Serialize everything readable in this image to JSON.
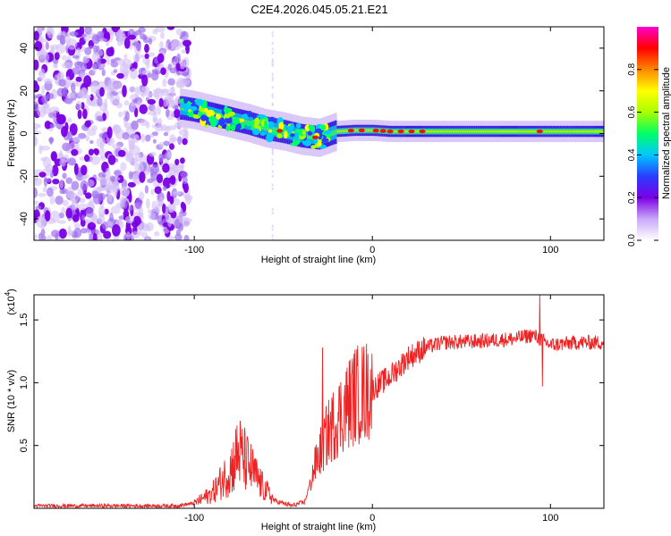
{
  "title": "C2E4.2026.045.05.21.E21",
  "chart_data": [
    {
      "type": "heatmap",
      "name": "spectrogram",
      "xlabel": "Height of straight line (km)",
      "ylabel": "Frequency (Hz)",
      "xlim": [
        -190,
        130
      ],
      "ylim": [
        -50,
        50
      ],
      "xticks": [
        -100,
        0,
        100
      ],
      "yticks": [
        -40,
        -20,
        0,
        20,
        40
      ],
      "noise_region": [
        -190,
        -105
      ],
      "ridge": [
        {
          "x": -107,
          "f": 12
        },
        {
          "x": -100,
          "f": 11
        },
        {
          "x": -90,
          "f": 9
        },
        {
          "x": -80,
          "f": 7
        },
        {
          "x": -70,
          "f": 5
        },
        {
          "x": -60,
          "f": 2.5
        },
        {
          "x": -50,
          "f": 1
        },
        {
          "x": -40,
          "f": -1
        },
        {
          "x": -30,
          "f": -2
        },
        {
          "x": -20,
          "f": 1
        },
        {
          "x": -10,
          "f": 1.5
        },
        {
          "x": 0,
          "f": 1.5
        },
        {
          "x": 10,
          "f": 1
        },
        {
          "x": 20,
          "f": 1
        },
        {
          "x": 40,
          "f": 1
        },
        {
          "x": 60,
          "f": 1
        },
        {
          "x": 80,
          "f": 1
        },
        {
          "x": 100,
          "f": 1
        },
        {
          "x": 130,
          "f": 1
        }
      ],
      "colorbar": {
        "label": "Normalized spectral amplitude",
        "range": [
          0,
          1
        ],
        "ticks": [
          0.0,
          0.2,
          0.4,
          0.6,
          0.8
        ],
        "tick_labels": [
          "0.0",
          "0.2",
          "0.4",
          "0.6",
          "0.8"
        ],
        "colors": [
          "#ffffff",
          "#c9a8f7",
          "#7a00e6",
          "#2a3cff",
          "#00c8ff",
          "#00ff66",
          "#aaff00",
          "#ffff00",
          "#ff8800",
          "#ff0000",
          "#ff00cc"
        ]
      }
    },
    {
      "type": "line",
      "name": "snr",
      "xlabel": "Height of straight line (km)",
      "ylabel": "SNR (10 * v/v)",
      "scale_label": "(x10",
      "scale_exp": "4",
      "scale_suffix": ")",
      "color": "#ee2222",
      "xlim": [
        -190,
        130
      ],
      "ylim": [
        0,
        1.7
      ],
      "xticks": [
        -100,
        0,
        100
      ],
      "yticks": [
        0.5,
        1.0,
        1.5
      ],
      "ytick_labels": [
        "0.5",
        "1.0",
        "1.5"
      ],
      "envelope": [
        {
          "x": -190,
          "y": 0.02
        },
        {
          "x": -110,
          "y": 0.02
        },
        {
          "x": -100,
          "y": 0.04
        },
        {
          "x": -90,
          "y": 0.12
        },
        {
          "x": -80,
          "y": 0.3
        },
        {
          "x": -75,
          "y": 0.45
        },
        {
          "x": -70,
          "y": 0.35
        },
        {
          "x": -62,
          "y": 0.18
        },
        {
          "x": -55,
          "y": 0.06
        },
        {
          "x": -45,
          "y": 0.02
        },
        {
          "x": -38,
          "y": 0.05
        },
        {
          "x": -32,
          "y": 0.35
        },
        {
          "x": -25,
          "y": 0.6
        },
        {
          "x": -18,
          "y": 0.75
        },
        {
          "x": -10,
          "y": 0.9
        },
        {
          "x": 0,
          "y": 0.95
        },
        {
          "x": 10,
          "y": 1.05
        },
        {
          "x": 20,
          "y": 1.2
        },
        {
          "x": 30,
          "y": 1.28
        },
        {
          "x": 40,
          "y": 1.32
        },
        {
          "x": 60,
          "y": 1.33
        },
        {
          "x": 80,
          "y": 1.35
        },
        {
          "x": 90,
          "y": 1.38
        },
        {
          "x": 100,
          "y": 1.3
        },
        {
          "x": 115,
          "y": 1.32
        },
        {
          "x": 130,
          "y": 1.32
        }
      ],
      "spikes": [
        {
          "x": -76,
          "y": 0.66
        },
        {
          "x": -28,
          "y": 1.28
        },
        {
          "x": 94,
          "y": 1.7
        },
        {
          "x": 95.5,
          "y": 0.97
        }
      ]
    }
  ]
}
